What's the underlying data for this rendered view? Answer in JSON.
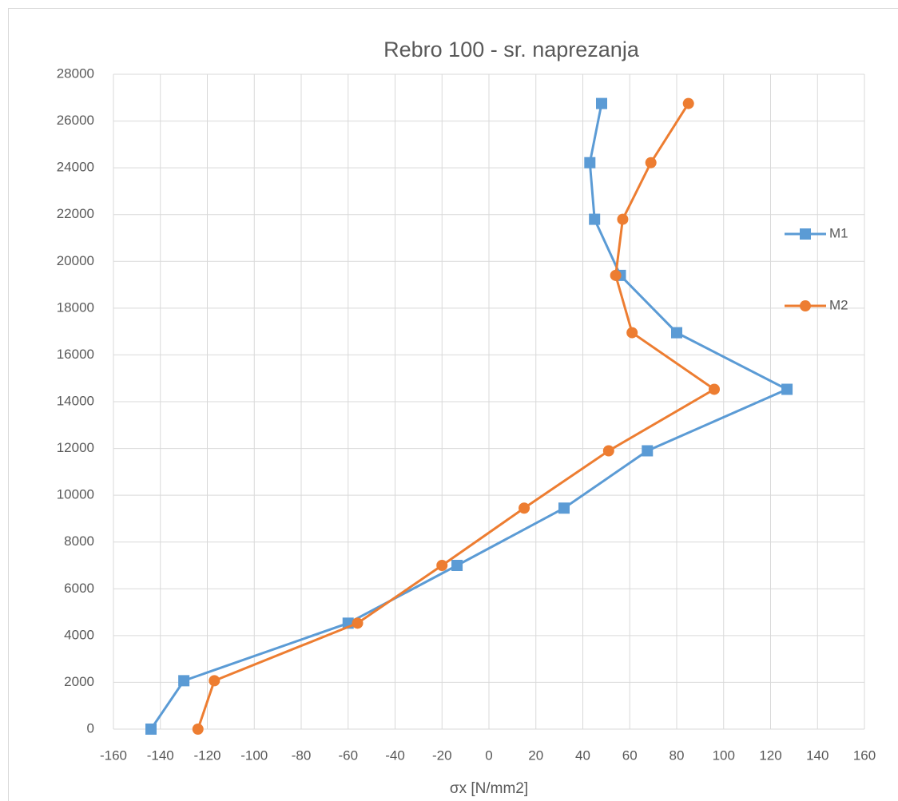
{
  "chart_data": {
    "type": "line",
    "title": "Rebro 100 - sr. naprezanja",
    "x_label": "σx [N/mm2]",
    "xlim": [
      -160,
      160
    ],
    "xticks": [
      -160,
      -140,
      -120,
      -100,
      -80,
      -60,
      -40,
      -20,
      0,
      20,
      40,
      60,
      80,
      100,
      120,
      140,
      160
    ],
    "ylim": [
      0,
      28000
    ],
    "yticks": [
      0,
      2000,
      4000,
      6000,
      8000,
      10000,
      12000,
      14000,
      16000,
      18000,
      20000,
      22000,
      24000,
      26000,
      28000
    ],
    "grid": true,
    "legend": "right",
    "series": [
      {
        "name": "M1",
        "color": "#5b9bd5",
        "marker": "square",
        "x": [
          -144,
          -130,
          -60,
          -13.6,
          32,
          67.5,
          127,
          80,
          56,
          45,
          43,
          48
        ],
        "y": [
          0,
          2070,
          4530,
          7000,
          9450,
          11900,
          14530,
          16950,
          19400,
          21800,
          24220,
          26750
        ]
      },
      {
        "name": "M2",
        "color": "#ed7d31",
        "marker": "circle",
        "x": [
          -124,
          -117,
          -56,
          -20,
          15,
          51,
          96,
          61,
          54,
          57,
          69,
          85
        ],
        "y": [
          0,
          2070,
          4530,
          7000,
          9450,
          11900,
          14530,
          16950,
          19400,
          21800,
          24220,
          26750
        ]
      }
    ]
  }
}
